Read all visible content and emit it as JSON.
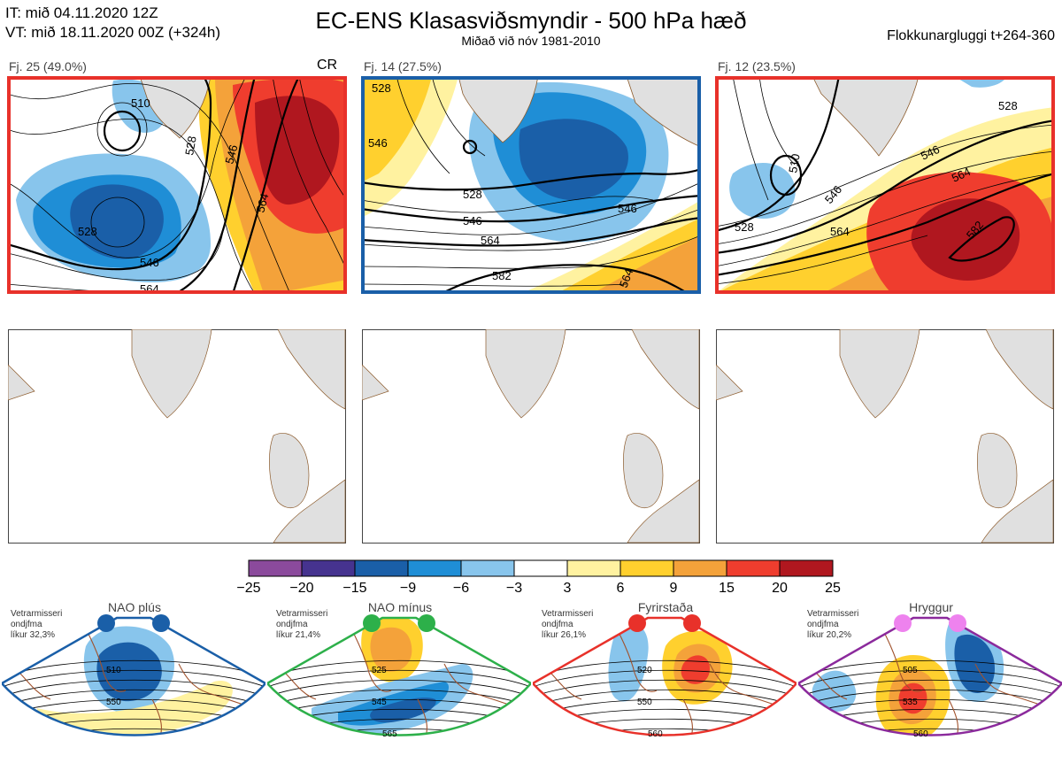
{
  "header": {
    "it_line": "IT: mið 04.11.2020 12Z",
    "vt_line": "VT: mið 18.11.2020 00Z  (+324h)",
    "title": "EC-ENS Klasasviðsmyndir - 500 hPa hæð",
    "subtitle": "Miðað við nóv 1981-2010",
    "window": "Flokkunargluggi t+264-360"
  },
  "clusters": [
    {
      "label": "Fj. 25 (49.0%)",
      "tag": "CR",
      "border_color": "#e8312a",
      "contour_labels": [
        "510",
        "528",
        "546",
        "564",
        "528",
        "546",
        "564"
      ]
    },
    {
      "label": "Fj. 14 (27.5%)",
      "tag": "",
      "border_color": "#1a5fa8",
      "contour_labels": [
        "528",
        "546",
        "528",
        "546",
        "564",
        "582",
        "546",
        "564"
      ]
    },
    {
      "label": "Fj. 12 (23.5%)",
      "tag": "",
      "border_color": "#e8312a",
      "contour_labels": [
        "528",
        "510",
        "528",
        "546",
        "564",
        "582",
        "546",
        "564"
      ]
    }
  ],
  "colorbar": {
    "ticks": [
      "−25",
      "−20",
      "−15",
      "−9",
      "−6",
      "−3",
      "3",
      "6",
      "9",
      "15",
      "20",
      "25"
    ],
    "colors": [
      "#8b4a9c",
      "#46338f",
      "#1a5fa8",
      "#1f8ed6",
      "#88c5ec",
      "#ffffff",
      "#fff2a0",
      "#ffd02e",
      "#f4a23a",
      "#ef3d2e",
      "#b0171f"
    ]
  },
  "regimes": [
    {
      "name": "NAO plús",
      "info": [
        "Vetrarmisseri",
        "ondjfma",
        "líkur 32,3%"
      ],
      "dot_color": "#1a5fa8",
      "border_color": "#1a5fa8",
      "contour_labels": [
        "510",
        "550"
      ]
    },
    {
      "name": "NAO mínus",
      "info": [
        "Vetrarmisseri",
        "ondjfma",
        "líkur 21,4%"
      ],
      "dot_color": "#2db04a",
      "border_color": "#2db04a",
      "contour_labels": [
        "525",
        "545",
        "565"
      ]
    },
    {
      "name": "Fyrirstaða",
      "info": [
        "Vetrarmisseri",
        "ondjfma",
        "líkur 26,1%"
      ],
      "dot_color": "#e8312a",
      "border_color": "#e8312a",
      "contour_labels": [
        "520",
        "550",
        "560"
      ]
    },
    {
      "name": "Hryggur",
      "info": [
        "Vetrarmisseri",
        "ondjfma",
        "líkur 20,2%"
      ],
      "dot_color": "#ee82ee",
      "border_color": "#8b2a9c",
      "contour_labels": [
        "505",
        "535",
        "560"
      ]
    }
  ]
}
